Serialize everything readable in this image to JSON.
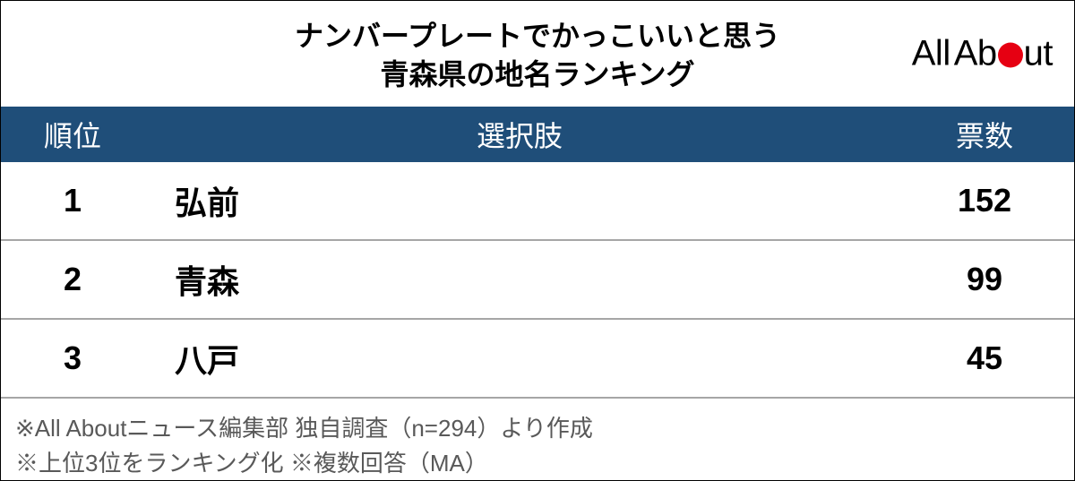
{
  "title": {
    "line1": "ナンバープレートでかっこいいと思う",
    "line2": "青森県の地名ランキング"
  },
  "logo": {
    "text_all": "All",
    "text_ab": "Ab",
    "text_ut": "ut",
    "dot_color": "#e60012"
  },
  "table": {
    "header_bg": "#1f4e79",
    "border_color": "#a6a6a6",
    "columns": {
      "rank": "順位",
      "choice": "選択肢",
      "votes": "票数"
    },
    "rows": [
      {
        "rank": "1",
        "choice": "弘前",
        "votes": "152"
      },
      {
        "rank": "2",
        "choice": "青森",
        "votes": "99"
      },
      {
        "rank": "3",
        "choice": "八戸",
        "votes": "45"
      }
    ]
  },
  "footnotes": {
    "line1": "※All Aboutニュース編集部 独自調査（n=294）より作成",
    "line2": "※上位3位をランキング化 ※複数回答（MA）"
  },
  "colors": {
    "text_black": "#000000",
    "text_gray": "#595959",
    "white": "#ffffff"
  }
}
